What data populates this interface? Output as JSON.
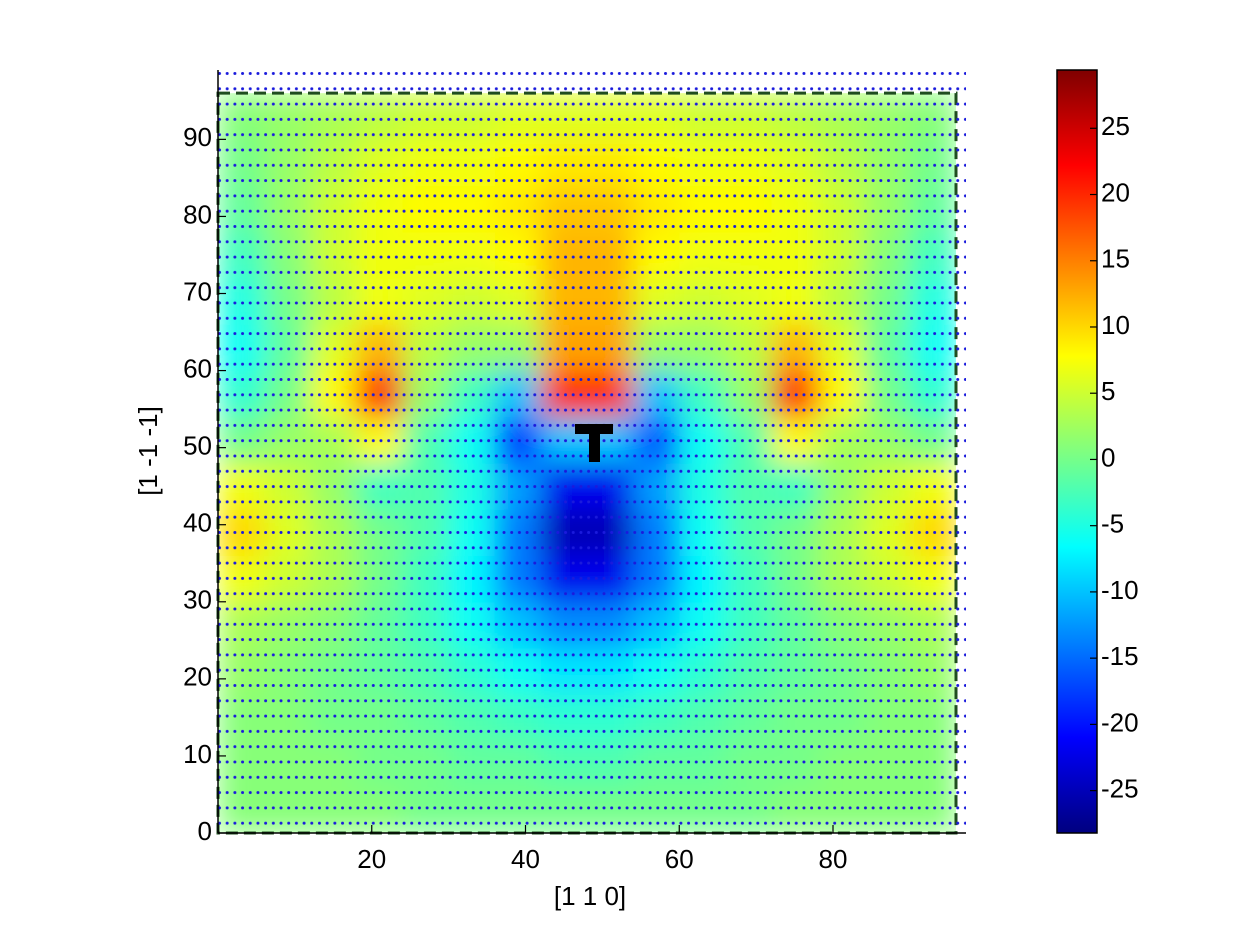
{
  "chart_data": {
    "type": "heatmap",
    "colormap": "jet",
    "x_label": "[1 1 0]",
    "y_label": "[1 -1 -1]",
    "x": [
      3,
      9,
      15,
      21,
      27,
      33,
      39,
      45,
      51,
      57,
      63,
      69,
      75,
      81,
      87,
      93
    ],
    "y": [
      3,
      9,
      15,
      21,
      27,
      33,
      39,
      45,
      51,
      57,
      63,
      69,
      75,
      81,
      87,
      93
    ],
    "z": [
      [
        1,
        1,
        1,
        1,
        0,
        0,
        0,
        0,
        0,
        0,
        0,
        0,
        1,
        1,
        1,
        1
      ],
      [
        1,
        1,
        1,
        0,
        0,
        -1,
        -1,
        -2,
        -2,
        -1,
        -1,
        0,
        0,
        1,
        1,
        1
      ],
      [
        1,
        1,
        0,
        0,
        -1,
        -2,
        -3,
        -4,
        -4,
        -3,
        -2,
        -1,
        0,
        0,
        1,
        1
      ],
      [
        2,
        1,
        0,
        -1,
        -2,
        -4,
        -6,
        -8,
        -8,
        -6,
        -4,
        -2,
        -1,
        0,
        1,
        2
      ],
      [
        3,
        2,
        1,
        -1,
        -3,
        -6,
        -10,
        -13,
        -13,
        -10,
        -6,
        -3,
        -1,
        1,
        2,
        3
      ],
      [
        7,
        5,
        3,
        0,
        -3,
        -7,
        -14,
        -22,
        -22,
        -14,
        -7,
        -3,
        0,
        3,
        5,
        7
      ],
      [
        10,
        6,
        3,
        0,
        -2,
        -6,
        -14,
        -25,
        -25,
        -14,
        -6,
        -2,
        0,
        3,
        6,
        10
      ],
      [
        7,
        5,
        2,
        -3,
        -2,
        -5,
        -12,
        -22,
        -22,
        -12,
        -5,
        -2,
        -3,
        2,
        5,
        7
      ],
      [
        0,
        2,
        3,
        8,
        -2,
        -6,
        -18,
        -10,
        -10,
        -16,
        -6,
        -2,
        8,
        3,
        2,
        0
      ],
      [
        -4,
        0,
        8,
        22,
        2,
        -3,
        -10,
        20,
        20,
        -10,
        -3,
        2,
        22,
        8,
        0,
        -4
      ],
      [
        -6,
        -1,
        6,
        12,
        4,
        2,
        2,
        13,
        13,
        2,
        2,
        4,
        12,
        6,
        -1,
        -6
      ],
      [
        -5,
        0,
        4,
        7,
        6,
        5,
        6,
        12,
        12,
        6,
        5,
        6,
        7,
        4,
        0,
        -5
      ],
      [
        -3,
        1,
        5,
        7,
        7,
        7,
        8,
        12,
        12,
        8,
        7,
        7,
        7,
        5,
        1,
        -3
      ],
      [
        -1,
        2,
        5,
        7,
        8,
        8,
        9,
        11,
        11,
        9,
        8,
        8,
        7,
        5,
        2,
        -1
      ],
      [
        0,
        2,
        4,
        6,
        7,
        7,
        8,
        9,
        9,
        8,
        7,
        7,
        6,
        4,
        2,
        0
      ],
      [
        1,
        2,
        3,
        4,
        5,
        5,
        6,
        6,
        6,
        6,
        5,
        5,
        4,
        3,
        2,
        1
      ]
    ],
    "xlim": [
      0,
      97.3
    ],
    "ylim": [
      0,
      99
    ],
    "xticks": [
      20,
      40,
      60,
      80
    ],
    "yticks": [
      0,
      10,
      20,
      30,
      40,
      50,
      60,
      70,
      80,
      90
    ],
    "clim": [
      -28.2,
      29.4
    ],
    "cticks": [
      -25,
      -20,
      -15,
      -10,
      -5,
      0,
      5,
      10,
      15,
      20,
      25
    ]
  }
}
